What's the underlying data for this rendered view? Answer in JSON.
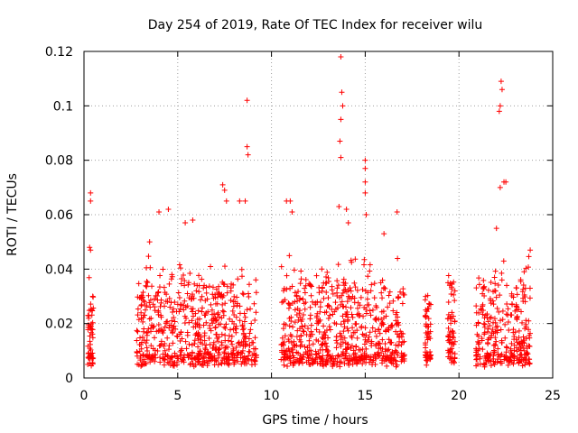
{
  "chart_data": {
    "type": "scatter",
    "title": "Day 254 of 2019, Rate Of TEC Index for receiver wilu",
    "xlabel": "GPS time / hours",
    "ylabel": "ROTI / TECUs",
    "xlim": [
      0,
      25
    ],
    "ylim": [
      0,
      0.12
    ],
    "xticks": [
      0,
      5,
      10,
      15,
      20,
      25
    ],
    "xtick_labels": [
      "0",
      "5",
      "10",
      "15",
      "20",
      "25"
    ],
    "yticks": [
      0,
      0.02,
      0.04,
      0.06,
      0.08,
      0.1,
      0.12
    ],
    "ytick_labels": [
      "0",
      "0.02",
      "0.04",
      "0.06",
      "0.08",
      "0.1",
      "0.12"
    ],
    "grid": true,
    "marker": "plus",
    "color": "#ff0000",
    "active_intervals": [
      {
        "start": 0.2,
        "end": 0.5,
        "typical_max": 0.025
      },
      {
        "start": 2.8,
        "end": 9.2,
        "typical_max": 0.03
      },
      {
        "start": 10.5,
        "end": 17.1,
        "typical_max": 0.03
      },
      {
        "start": 18.2,
        "end": 18.5,
        "typical_max": 0.025
      },
      {
        "start": 19.4,
        "end": 19.8,
        "typical_max": 0.03
      },
      {
        "start": 20.9,
        "end": 23.8,
        "typical_max": 0.03
      }
    ],
    "notable_points": [
      {
        "x": 0.35,
        "y": 0.068
      },
      {
        "x": 0.35,
        "y": 0.065
      },
      {
        "x": 0.3,
        "y": 0.048
      },
      {
        "x": 0.35,
        "y": 0.047
      },
      {
        "x": 3.5,
        "y": 0.05
      },
      {
        "x": 4.0,
        "y": 0.061
      },
      {
        "x": 4.5,
        "y": 0.062
      },
      {
        "x": 5.4,
        "y": 0.057
      },
      {
        "x": 5.8,
        "y": 0.058
      },
      {
        "x": 7.4,
        "y": 0.071
      },
      {
        "x": 7.5,
        "y": 0.069
      },
      {
        "x": 7.6,
        "y": 0.065
      },
      {
        "x": 8.3,
        "y": 0.065
      },
      {
        "x": 8.6,
        "y": 0.065
      },
      {
        "x": 8.7,
        "y": 0.102
      },
      {
        "x": 8.7,
        "y": 0.085
      },
      {
        "x": 8.75,
        "y": 0.082
      },
      {
        "x": 10.8,
        "y": 0.065
      },
      {
        "x": 11.0,
        "y": 0.065
      },
      {
        "x": 11.1,
        "y": 0.061
      },
      {
        "x": 13.6,
        "y": 0.063
      },
      {
        "x": 13.7,
        "y": 0.081
      },
      {
        "x": 13.65,
        "y": 0.087
      },
      {
        "x": 13.7,
        "y": 0.095
      },
      {
        "x": 13.8,
        "y": 0.1
      },
      {
        "x": 13.75,
        "y": 0.105
      },
      {
        "x": 13.7,
        "y": 0.118
      },
      {
        "x": 14.0,
        "y": 0.062
      },
      {
        "x": 14.1,
        "y": 0.057
      },
      {
        "x": 15.0,
        "y": 0.08
      },
      {
        "x": 15.0,
        "y": 0.077
      },
      {
        "x": 15.0,
        "y": 0.072
      },
      {
        "x": 15.0,
        "y": 0.068
      },
      {
        "x": 15.05,
        "y": 0.06
      },
      {
        "x": 16.0,
        "y": 0.053
      },
      {
        "x": 16.7,
        "y": 0.061
      },
      {
        "x": 22.0,
        "y": 0.055
      },
      {
        "x": 22.2,
        "y": 0.07
      },
      {
        "x": 22.25,
        "y": 0.109
      },
      {
        "x": 22.3,
        "y": 0.106
      },
      {
        "x": 22.2,
        "y": 0.1
      },
      {
        "x": 22.15,
        "y": 0.098
      },
      {
        "x": 22.4,
        "y": 0.072
      },
      {
        "x": 22.5,
        "y": 0.072
      },
      {
        "x": 23.8,
        "y": 0.047
      }
    ]
  }
}
